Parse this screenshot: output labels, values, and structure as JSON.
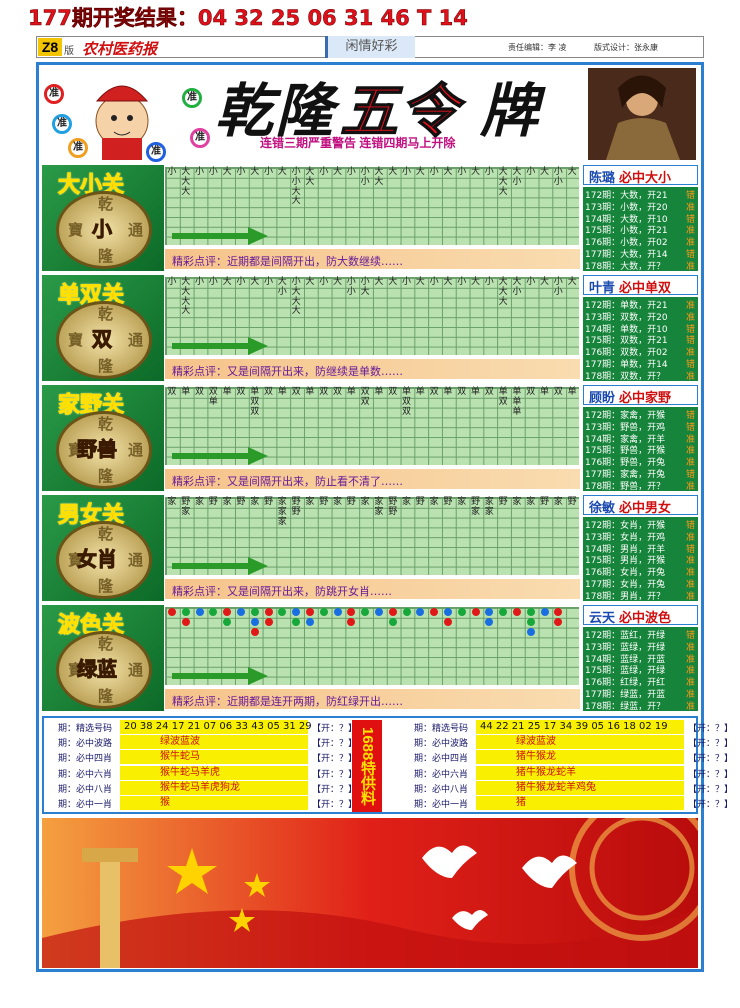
{
  "header": {
    "draw_result": "177期开奖结果：04 32 25 06 31 46 T 14",
    "edition": "Z8",
    "edition_suffix": "版",
    "paper": "农村医药报",
    "column": "闲情好彩",
    "editor": "责任编辑：李 凌",
    "designer": "版式设计：张永康"
  },
  "banner": {
    "title_parts": [
      "乾隆",
      "五令",
      "牌"
    ],
    "badges": [
      "准",
      "准",
      "准",
      "准",
      "准",
      "准"
    ],
    "warning": "连错三期严重警告 连错四期马上开除"
  },
  "coin_chars": [
    "乾",
    "寶",
    "通",
    "隆"
  ],
  "sections": [
    {
      "name": "大小关",
      "coin": "小",
      "comment": "精彩点评：近期都是间隔开出，防大数继续……",
      "grid": [
        [
          "小",
          "大",
          "小",
          "小",
          "大",
          "小",
          "大",
          "小",
          "大",
          "小",
          "大",
          "小",
          "大",
          "小",
          "小",
          "大",
          "大",
          "小",
          "大",
          "小",
          "大",
          "小",
          "大",
          "小",
          "大",
          "大",
          "小",
          "大",
          "小",
          "大"
        ],
        [
          null,
          "大",
          null,
          null,
          null,
          null,
          null,
          null,
          null,
          "小",
          "大",
          null,
          null,
          null,
          "小",
          "大",
          null,
          null,
          null,
          null,
          null,
          null,
          null,
          null,
          "大",
          "小",
          null,
          null,
          "小"
        ],
        [
          null,
          "大",
          null,
          null,
          null,
          null,
          null,
          null,
          null,
          "大",
          null,
          null,
          null,
          null,
          null,
          null,
          null,
          null,
          null,
          null,
          null,
          null,
          null,
          null,
          "大"
        ],
        [
          null,
          null,
          null,
          null,
          null,
          null,
          null,
          null,
          null,
          "大"
        ]
      ],
      "sidebar": {
        "name": "陈璐",
        "title": "必中大小",
        "rows": [
          {
            "text": "172期：大数，开21",
            "verdict": "错"
          },
          {
            "text": "173期：小数，开20",
            "verdict": "准"
          },
          {
            "text": "174期：大数，开10",
            "verdict": "错"
          },
          {
            "text": "175期：小数，开21",
            "verdict": "准"
          },
          {
            "text": "176期：小数，开02",
            "verdict": "准"
          },
          {
            "text": "177期：大数，开14",
            "verdict": "错"
          },
          {
            "text": "178期：大数，开？",
            "verdict": "准"
          }
        ]
      }
    },
    {
      "name": "单双关",
      "coin": "双",
      "comment": "精彩点评：又是间隔开出来，防继续是单数……",
      "grid": [
        [
          "小",
          "大",
          "小",
          "小",
          "大",
          "小",
          "大",
          "小",
          "大",
          "小",
          "大",
          "小",
          "大",
          "小",
          "小",
          "大",
          "大",
          "小",
          "大",
          "小",
          "大",
          "小",
          "大",
          "小",
          "大",
          "大",
          "小",
          "大",
          "小",
          "大"
        ],
        [
          null,
          "大",
          null,
          null,
          null,
          null,
          null,
          null,
          "小",
          "大",
          null,
          null,
          null,
          "小",
          "大",
          null,
          null,
          null,
          null,
          null,
          null,
          null,
          null,
          null,
          "大",
          "小",
          null,
          null,
          "小"
        ],
        [
          null,
          "大",
          null,
          null,
          null,
          null,
          null,
          null,
          null,
          "大",
          null,
          null,
          null,
          null,
          null,
          null,
          null,
          null,
          null,
          null,
          null,
          null,
          null,
          null,
          "大"
        ],
        [
          null,
          "大",
          null,
          null,
          null,
          null,
          null,
          null,
          null,
          "大"
        ]
      ],
      "sidebar": {
        "name": "叶青",
        "title": "必中单双",
        "rows": [
          {
            "text": "172期：单数，开21",
            "verdict": "准"
          },
          {
            "text": "173期：双数，开20",
            "verdict": "准"
          },
          {
            "text": "174期：单数，开10",
            "verdict": "错"
          },
          {
            "text": "175期：双数，开21",
            "verdict": "错"
          },
          {
            "text": "176期：双数，开02",
            "verdict": "准"
          },
          {
            "text": "177期：单数，开14",
            "verdict": "错"
          },
          {
            "text": "178期：双数，开？",
            "verdict": "准"
          }
        ]
      }
    },
    {
      "name": "家野关",
      "coin": "野兽",
      "comment": "精彩点评：又是间隔开出来，防止看不清了……",
      "grid": [
        [
          "双",
          "单",
          "双",
          "双",
          "单",
          "双",
          "单",
          "双",
          "单",
          "双",
          "单",
          "双",
          "双",
          "单",
          "双",
          "单",
          "双",
          "单",
          "单",
          "双",
          "单",
          "双",
          "单",
          "双",
          "单",
          "单",
          "双",
          "单",
          "双",
          "单"
        ],
        [
          null,
          null,
          null,
          "单",
          null,
          null,
          "双",
          null,
          null,
          null,
          null,
          null,
          null,
          null,
          "双",
          null,
          null,
          "双",
          null,
          null,
          null,
          null,
          null,
          null,
          "双",
          "单"
        ],
        [
          null,
          null,
          null,
          null,
          null,
          null,
          "双",
          null,
          null,
          null,
          null,
          null,
          null,
          null,
          null,
          null,
          null,
          "双",
          null,
          null,
          null,
          null,
          null,
          null,
          null,
          "单"
        ]
      ],
      "sidebar": {
        "name": "顾盼",
        "title": "必中家野",
        "rows": [
          {
            "text": "172期：家禽，开猴",
            "verdict": "错"
          },
          {
            "text": "173期：野兽，开鸡",
            "verdict": "错"
          },
          {
            "text": "174期：家禽，开羊",
            "verdict": "准"
          },
          {
            "text": "175期：野兽，开猴",
            "verdict": "准"
          },
          {
            "text": "176期：野兽，开兔",
            "verdict": "准"
          },
          {
            "text": "177期：家禽，开兔",
            "verdict": "错"
          },
          {
            "text": "178期：野兽，开？",
            "verdict": "准"
          }
        ]
      }
    },
    {
      "name": "男女关",
      "coin": "女肖",
      "comment": "精彩点评：又是间隔开出来，防跳开女肖……",
      "grid": [
        [
          "家",
          "野",
          "家",
          "野",
          "家",
          "野",
          "家",
          "野",
          "家",
          "野",
          "家",
          "野",
          "家",
          "野",
          "家",
          "家",
          "野",
          "家",
          "野",
          "家",
          "野",
          "家",
          "野",
          "家",
          "野",
          "家",
          "家",
          "野",
          "家",
          "野"
        ],
        [
          null,
          "家",
          null,
          null,
          null,
          null,
          null,
          null,
          "家",
          "野",
          null,
          null,
          null,
          null,
          null,
          "家",
          "野",
          null,
          null,
          null,
          null,
          null,
          "家",
          "家"
        ],
        [
          null,
          null,
          null,
          null,
          null,
          null,
          null,
          null,
          "家"
        ]
      ],
      "sidebar": {
        "name": "徐敏",
        "title": "必中男女",
        "rows": [
          {
            "text": "172期：女肖，开猴",
            "verdict": "错"
          },
          {
            "text": "173期：女肖，开鸡",
            "verdict": "准"
          },
          {
            "text": "174期：男肖，开羊",
            "verdict": "错"
          },
          {
            "text": "175期：男肖，开猴",
            "verdict": "准"
          },
          {
            "text": "176期：女肖，开兔",
            "verdict": "准"
          },
          {
            "text": "177期：女肖，开兔",
            "verdict": "准"
          },
          {
            "text": "178期：男肖，开？",
            "verdict": "准"
          }
        ]
      }
    },
    {
      "name": "波色关",
      "coin": "绿蓝",
      "comment": "精彩点评：近期都是连开两期，防红绿开出……",
      "dot_colors": {
        "r": "#e01818",
        "b": "#1a6fe0",
        "g": "#16a83a"
      },
      "dots": [
        [
          "r",
          "g",
          "b",
          "g",
          "r",
          "b",
          "g",
          "r",
          "g",
          "b",
          "r",
          "g",
          "b",
          "r",
          "g",
          "b",
          "r",
          "g",
          "b",
          "r",
          "b",
          "g",
          "r",
          "b",
          "g",
          "r",
          "g",
          "b",
          "r"
        ],
        [
          null,
          "r",
          null,
          null,
          "g",
          null,
          "b",
          "r",
          null,
          "g",
          "b",
          null,
          null,
          "r",
          null,
          null,
          "g",
          null,
          null,
          null,
          "r",
          null,
          null,
          "b",
          null,
          null,
          "g",
          null,
          "r"
        ],
        [
          null,
          null,
          null,
          null,
          null,
          null,
          "r",
          null,
          null,
          null,
          null,
          null,
          null,
          null,
          null,
          null,
          null,
          null,
          null,
          null,
          null,
          null,
          null,
          null,
          null,
          null,
          "b"
        ]
      ],
      "sidebar": {
        "name": "云天",
        "title": "必中波色",
        "rows": [
          {
            "text": "172期：蓝红，开绿",
            "verdict": "错"
          },
          {
            "text": "173期：蓝绿，开绿",
            "verdict": "准"
          },
          {
            "text": "174期：蓝绿，开蓝",
            "verdict": "准"
          },
          {
            "text": "175期：蓝绿，开绿",
            "verdict": "准"
          },
          {
            "text": "176期：红绿，开红",
            "verdict": "准"
          },
          {
            "text": "177期：绿蓝，开蓝",
            "verdict": "准"
          },
          {
            "text": "178期：绿蓝，开？",
            "verdict": "准"
          }
        ]
      }
    }
  ],
  "picks": {
    "side_label": "1688特供料",
    "columns": [
      {
        "rows": [
          {
            "label": "期：精选号码",
            "value": "20 38 24 17 21 07 06 33 43 05 31 29",
            "result": "【开：？】"
          },
          {
            "label": "期：必中波路",
            "value": "绿波蓝波",
            "result": "【开：？】"
          },
          {
            "label": "期：必中四肖",
            "value": "猴牛蛇马",
            "result": "【开：？】"
          },
          {
            "label": "期：必中六肖",
            "value": "猴牛蛇马羊虎",
            "result": "【开：？】"
          },
          {
            "label": "期：必中八肖",
            "value": "猴牛蛇马羊虎狗龙",
            "result": "【开：？】"
          },
          {
            "label": "期：必中一肖",
            "value": "猴",
            "result": "【开：？】"
          }
        ]
      },
      {
        "rows": [
          {
            "label": "期：精选号码",
            "value": "44 22 21 25 17 34 39 05 16 18 02 19",
            "result": "【开：？】"
          },
          {
            "label": "期：必中波路",
            "value": "绿波蓝波",
            "result": "【开：？】"
          },
          {
            "label": "期：必中四肖",
            "value": "猪牛猴龙",
            "result": "【开：？】"
          },
          {
            "label": "期：必中六肖",
            "value": "猪牛猴龙蛇羊",
            "result": "【开：？】"
          },
          {
            "label": "期：必中八肖",
            "value": "猪牛猴龙蛇羊鸡兔",
            "result": "【开：？】"
          },
          {
            "label": "期：必中一肖",
            "value": "猪",
            "result": "【开：？】"
          }
        ]
      }
    ]
  }
}
